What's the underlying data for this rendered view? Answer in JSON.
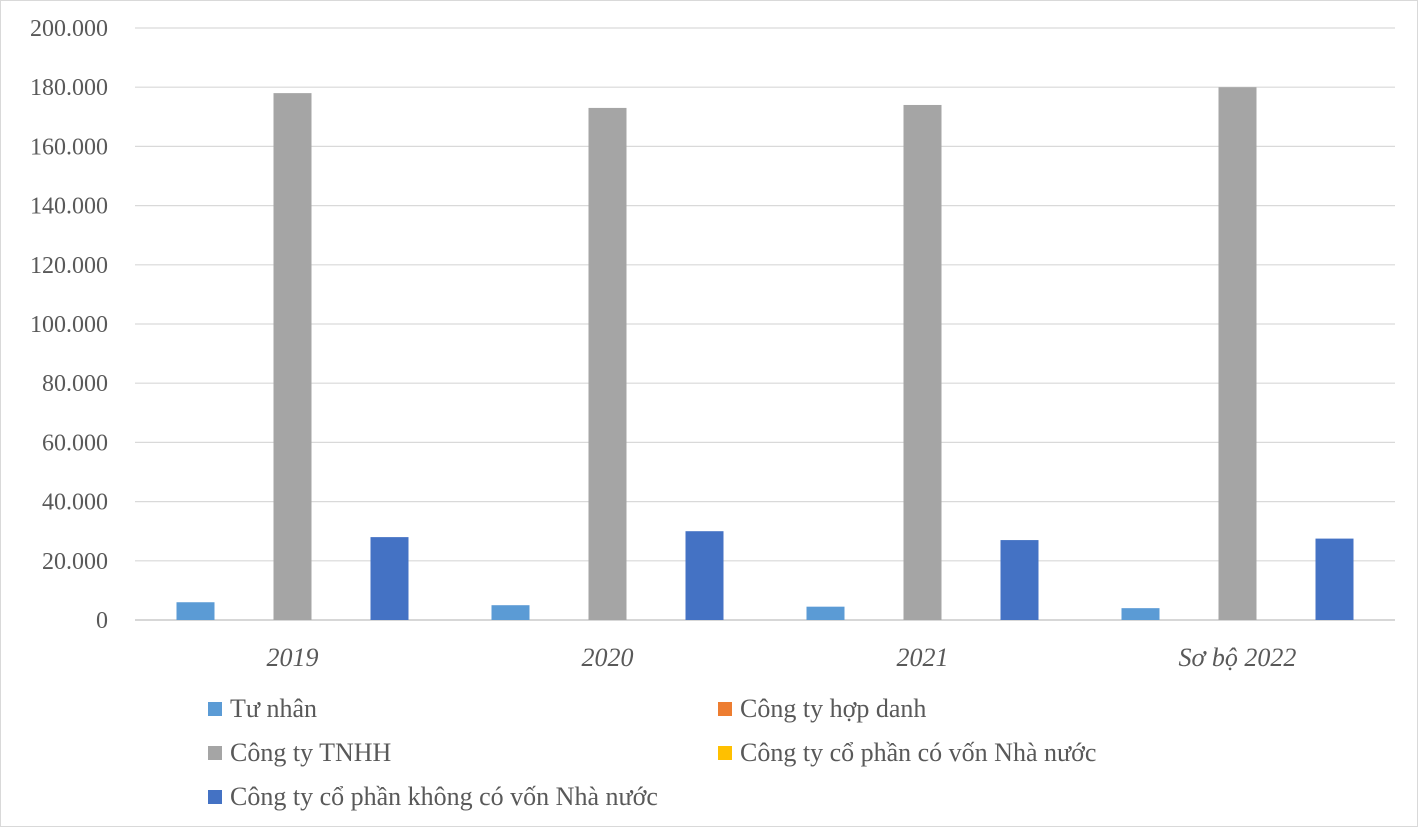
{
  "chart_data": {
    "type": "bar",
    "categories": [
      "2019",
      "2020",
      "2021",
      "Sơ bộ 2022"
    ],
    "series": [
      {
        "name": "Tư nhân",
        "color": "#5B9BD5",
        "values": [
          6000,
          5000,
          4500,
          4000
        ]
      },
      {
        "name": "Công ty hợp danh",
        "color": "#ED7D31",
        "values": [
          0,
          0,
          0,
          0
        ]
      },
      {
        "name": "Công ty TNHH",
        "color": "#A5A5A5",
        "values": [
          178000,
          173000,
          174000,
          180000
        ]
      },
      {
        "name": "Công ty cổ phần có vốn Nhà nước",
        "color": "#FFC000",
        "values": [
          0,
          0,
          0,
          0
        ]
      },
      {
        "name": "Công ty cổ phần không có vốn Nhà nước",
        "color": "#4472C4",
        "values": [
          28000,
          30000,
          27000,
          27500
        ]
      }
    ],
    "yticks": [
      "0",
      "20.000",
      "40.000",
      "60.000",
      "80.000",
      "100.000",
      "120.000",
      "140.000",
      "160.000",
      "180.000",
      "200.000"
    ],
    "ylim": [
      0,
      200000
    ],
    "grid": true,
    "legend": "bottom",
    "title": "",
    "xlabel": "",
    "ylabel": ""
  }
}
